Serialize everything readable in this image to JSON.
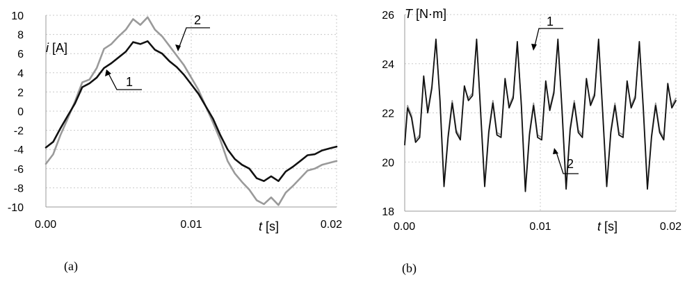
{
  "chart_data": [
    {
      "type": "line",
      "panel_label": "(a)",
      "xlabel_var": "t",
      "xlabel_unit": " [s]",
      "ylabel_var": "i",
      "ylabel_unit": " [A]",
      "xlim": [
        0,
        0.02
      ],
      "ylim": [
        -10,
        10
      ],
      "x_ticks": [
        "0.00",
        "0.01",
        "0.02"
      ],
      "x_tick_values": [
        0,
        0.01,
        0.02
      ],
      "y_ticks": [
        "10",
        "8",
        "6",
        "4",
        "2",
        "0",
        "-2",
        "-4",
        "-6",
        "-8",
        "-10"
      ],
      "y_tick_values": [
        10,
        8,
        6,
        4,
        2,
        0,
        -2,
        -4,
        -6,
        -8,
        -10
      ],
      "grid": true,
      "series": [
        {
          "name": "1",
          "color": "#111111",
          "x": [
            0,
            0.0005,
            0.001,
            0.0015,
            0.002,
            0.0025,
            0.003,
            0.0035,
            0.004,
            0.0045,
            0.005,
            0.0055,
            0.006,
            0.0065,
            0.007,
            0.0075,
            0.008,
            0.0085,
            0.009,
            0.0095,
            0.01,
            0.0105,
            0.011,
            0.0115,
            0.012,
            0.0125,
            0.013,
            0.0135,
            0.014,
            0.0145,
            0.015,
            0.0155,
            0.016,
            0.0165,
            0.017,
            0.0175,
            0.018,
            0.0185,
            0.019,
            0.0195,
            0.02
          ],
          "values": [
            -3.8,
            -3.2,
            -1.8,
            -0.5,
            0.8,
            2.5,
            2.9,
            3.5,
            4.5,
            5.0,
            5.6,
            6.2,
            7.2,
            7.0,
            7.3,
            6.4,
            6.0,
            5.2,
            4.6,
            3.8,
            2.8,
            1.8,
            0.5,
            -0.8,
            -2.5,
            -4.0,
            -5.0,
            -5.6,
            -6.0,
            -7.0,
            -7.3,
            -6.8,
            -7.3,
            -6.3,
            -5.8,
            -5.2,
            -4.6,
            -4.5,
            -4.1,
            -3.9,
            -3.7
          ]
        },
        {
          "name": "2",
          "color": "#9a9a9a",
          "x": [
            0,
            0.0005,
            0.001,
            0.0015,
            0.002,
            0.0025,
            0.003,
            0.0035,
            0.004,
            0.0045,
            0.005,
            0.0055,
            0.006,
            0.0065,
            0.007,
            0.0075,
            0.008,
            0.0085,
            0.009,
            0.0095,
            0.01,
            0.0105,
            0.011,
            0.0115,
            0.012,
            0.0125,
            0.013,
            0.0135,
            0.014,
            0.0145,
            0.015,
            0.0155,
            0.016,
            0.0165,
            0.017,
            0.0175,
            0.018,
            0.0185,
            0.019,
            0.0195,
            0.02
          ],
          "values": [
            -5.5,
            -4.5,
            -2.5,
            -0.8,
            1.0,
            3.0,
            3.3,
            4.5,
            6.5,
            7.0,
            7.8,
            8.5,
            9.6,
            9.0,
            9.8,
            8.5,
            7.8,
            6.8,
            5.8,
            4.8,
            3.5,
            2.2,
            0.5,
            -1.2,
            -3.0,
            -5.2,
            -6.5,
            -7.4,
            -8.2,
            -9.3,
            -9.7,
            -9.0,
            -9.8,
            -8.5,
            -7.8,
            -7.0,
            -6.2,
            -6.0,
            -5.6,
            -5.4,
            -5.2
          ]
        }
      ]
    },
    {
      "type": "line",
      "panel_label": "(b)",
      "xlabel_var": "t",
      "xlabel_unit": " [s]",
      "ylabel_var": "T",
      "ylabel_unit": " [N·m]",
      "xlim": [
        0,
        0.02
      ],
      "ylim": [
        18,
        26
      ],
      "x_ticks": [
        "0.00",
        "0.01",
        "0.02"
      ],
      "x_tick_values": [
        0,
        0.01,
        0.02
      ],
      "y_ticks": [
        "26",
        "24",
        "22",
        "20",
        "18"
      ],
      "y_tick_values": [
        26,
        24,
        22,
        20,
        18
      ],
      "grid": true,
      "series": [
        {
          "name": "1",
          "color": "#111111",
          "x": [
            0.0,
            0.00021,
            0.0005,
            0.0008,
            0.0011,
            0.0014,
            0.0017,
            0.002,
            0.0023,
            0.0026,
            0.0029,
            0.0032,
            0.0035,
            0.0038,
            0.0041,
            0.0044,
            0.0047,
            0.005,
            0.0053,
            0.0056,
            0.0059,
            0.0062,
            0.0065,
            0.0068,
            0.0071,
            0.0074,
            0.0077,
            0.008,
            0.0083,
            0.0086,
            0.0089,
            0.0092,
            0.0095,
            0.0098,
            0.0101,
            0.0104,
            0.0107,
            0.011,
            0.0113,
            0.0116,
            0.0119,
            0.0122,
            0.0125,
            0.0128,
            0.0131,
            0.0134,
            0.0137,
            0.014,
            0.0143,
            0.0146,
            0.0149,
            0.0152,
            0.0155,
            0.0158,
            0.0161,
            0.0164,
            0.0167,
            0.017,
            0.0173,
            0.0176,
            0.0179,
            0.0182,
            0.0185,
            0.0188,
            0.0191,
            0.0194,
            0.0197,
            0.02
          ],
          "values": [
            20.7,
            22.2,
            21.8,
            20.8,
            21.0,
            23.5,
            22.0,
            23.0,
            25.0,
            22.5,
            19.0,
            21.0,
            22.4,
            21.2,
            20.9,
            23.1,
            22.5,
            22.7,
            25.0,
            22.0,
            19.0,
            21.2,
            22.4,
            21.1,
            21.0,
            23.4,
            22.2,
            22.6,
            24.9,
            22.3,
            18.8,
            21.1,
            22.3,
            21.0,
            20.9,
            23.3,
            22.1,
            22.8,
            25.0,
            22.1,
            18.9,
            21.3,
            22.4,
            21.2,
            21.0,
            23.4,
            22.3,
            22.7,
            25.0,
            22.0,
            19.0,
            21.2,
            22.3,
            21.1,
            21.0,
            23.3,
            22.2,
            22.6,
            24.9,
            22.1,
            18.9,
            21.0,
            22.3,
            21.2,
            20.9,
            23.2,
            22.2,
            22.5
          ]
        },
        {
          "name": "2",
          "color": "#9a9a9a",
          "x": [
            0.0,
            0.00021,
            0.0005,
            0.0008,
            0.0011,
            0.0014,
            0.0017,
            0.002,
            0.0023,
            0.0026,
            0.0029,
            0.0032,
            0.0035,
            0.0038,
            0.0041,
            0.0044,
            0.0047,
            0.005,
            0.0053,
            0.0056,
            0.0059,
            0.0062,
            0.0065,
            0.0068,
            0.0071,
            0.0074,
            0.0077,
            0.008,
            0.0083,
            0.0086,
            0.0089,
            0.0092,
            0.0095,
            0.0098,
            0.0101,
            0.0104,
            0.0107,
            0.011,
            0.0113,
            0.0116,
            0.0119,
            0.0122,
            0.0125,
            0.0128,
            0.0131,
            0.0134,
            0.0137,
            0.014,
            0.0143,
            0.0146,
            0.0149,
            0.0152,
            0.0155,
            0.0158,
            0.0161,
            0.0164,
            0.0167,
            0.017,
            0.0173,
            0.0176,
            0.0179,
            0.0182,
            0.0185,
            0.0188,
            0.0191,
            0.0194,
            0.0197,
            0.02
          ],
          "values": [
            20.8,
            22.3,
            21.9,
            20.9,
            21.1,
            23.4,
            22.1,
            23.1,
            24.9,
            22.6,
            19.1,
            21.1,
            22.5,
            21.3,
            21.0,
            23.0,
            22.6,
            22.8,
            24.9,
            22.1,
            19.1,
            21.3,
            22.5,
            21.2,
            21.1,
            23.3,
            22.3,
            22.7,
            24.8,
            22.4,
            18.9,
            21.2,
            22.4,
            21.1,
            21.0,
            23.2,
            22.2,
            22.9,
            24.9,
            22.2,
            19.0,
            21.4,
            22.5,
            21.3,
            21.1,
            23.3,
            22.4,
            22.8,
            24.9,
            22.1,
            19.1,
            21.3,
            22.4,
            21.2,
            21.1,
            23.2,
            22.3,
            22.7,
            24.8,
            22.2,
            19.0,
            21.1,
            22.4,
            21.3,
            21.0,
            23.1,
            22.3,
            22.6
          ]
        }
      ]
    }
  ]
}
